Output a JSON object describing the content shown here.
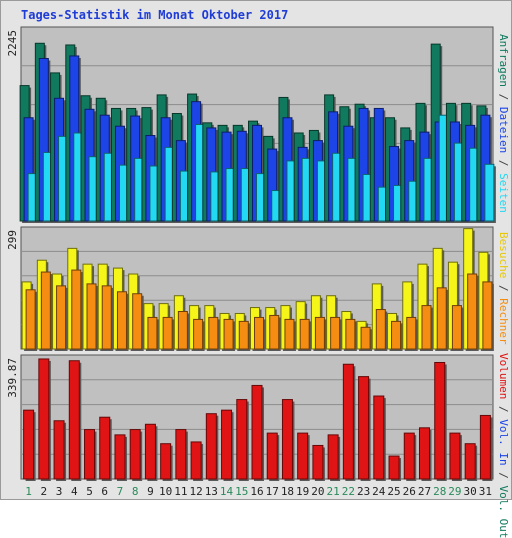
{
  "title": "Tages-Statistik im Monat Oktober 2017",
  "colors": {
    "anfragen": "#117a5e",
    "dateien": "#1c44e6",
    "seiten": "#22d8f2",
    "besuche": "#f5f51a",
    "rechner": "#f58d13",
    "volumen": "#e01414",
    "weekday_label": "#222222",
    "weekend_label": "#2a8a5a",
    "plot_bg": "#c0c0c0",
    "grid": "#8c8c8c"
  },
  "right_labels": {
    "top": [
      {
        "text": "Anfragen",
        "color": "#117a5e"
      },
      {
        "text": "Dateien",
        "color": "#1c44e6"
      },
      {
        "text": "Seiten",
        "color": "#22d8f2"
      }
    ],
    "middle": [
      {
        "text": "Besuche",
        "color": "#e8c800"
      },
      {
        "text": "Rechner",
        "color": "#f58d13"
      }
    ],
    "bottom": [
      {
        "text": "Volumen",
        "color": "#e01414"
      },
      {
        "text": "Vol. In",
        "color": "#1c44e6"
      },
      {
        "text": "Vol. Out",
        "color": "#117a5e"
      }
    ]
  },
  "chart_data": [
    {
      "type": "bar",
      "panel": "top",
      "ymax_label": "2245",
      "ylim": [
        0,
        2245
      ],
      "grid": true,
      "categories": [
        "1",
        "2",
        "3",
        "4",
        "5",
        "6",
        "7",
        "8",
        "9",
        "10",
        "11",
        "12",
        "13",
        "14",
        "15",
        "16",
        "17",
        "18",
        "19",
        "20",
        "21",
        "22",
        "23",
        "24",
        "25",
        "26",
        "27",
        "28",
        "29",
        "30",
        "31"
      ],
      "weekend_days": [
        "1",
        "7",
        "8",
        "14",
        "15",
        "21",
        "22",
        "28",
        "29"
      ],
      "series": [
        {
          "name": "Anfragen",
          "values": [
            1600,
            2100,
            1750,
            2080,
            1480,
            1450,
            1330,
            1330,
            1340,
            1490,
            1270,
            1500,
            1160,
            1130,
            1130,
            1180,
            1000,
            1460,
            1040,
            1070,
            1490,
            1350,
            1380,
            1220,
            1220,
            1100,
            1390,
            2090,
            1390,
            1390,
            1360
          ]
        },
        {
          "name": "Dateien",
          "values": [
            1220,
            1920,
            1450,
            1950,
            1320,
            1250,
            1120,
            1240,
            1010,
            1220,
            950,
            1410,
            1100,
            1050,
            1060,
            1130,
            850,
            1220,
            870,
            950,
            1290,
            1120,
            1330,
            1330,
            880,
            950,
            1050,
            1170,
            1170,
            1130,
            1250
          ]
        },
        {
          "name": "Seiten",
          "values": [
            560,
            810,
            1000,
            1040,
            760,
            800,
            660,
            740,
            650,
            870,
            590,
            1140,
            580,
            620,
            620,
            560,
            360,
            710,
            740,
            710,
            800,
            740,
            550,
            400,
            420,
            470,
            740,
            1250,
            920,
            860,
            670
          ]
        }
      ]
    },
    {
      "type": "bar",
      "panel": "middle",
      "ymax_label": "299",
      "ylim": [
        0,
        299
      ],
      "grid": true,
      "categories": [
        "1",
        "2",
        "3",
        "4",
        "5",
        "6",
        "7",
        "8",
        "9",
        "10",
        "11",
        "12",
        "13",
        "14",
        "15",
        "16",
        "17",
        "18",
        "19",
        "20",
        "21",
        "22",
        "23",
        "24",
        "25",
        "26",
        "27",
        "28",
        "29",
        "30",
        "31"
      ],
      "series": [
        {
          "name": "Besuche",
          "values": [
            170,
            225,
            190,
            255,
            215,
            215,
            205,
            190,
            115,
            115,
            135,
            110,
            110,
            90,
            90,
            105,
            105,
            110,
            120,
            135,
            135,
            95,
            70,
            165,
            90,
            170,
            215,
            255,
            220,
            305,
            245
          ]
        },
        {
          "name": "Rechner",
          "values": [
            150,
            195,
            160,
            200,
            165,
            160,
            145,
            140,
            80,
            80,
            95,
            75,
            80,
            75,
            70,
            80,
            85,
            75,
            75,
            80,
            80,
            75,
            55,
            100,
            70,
            80,
            110,
            155,
            110,
            190,
            170
          ]
        }
      ]
    },
    {
      "type": "bar",
      "panel": "bottom",
      "ymax_label": "339.87",
      "ylim": [
        0,
        339.87
      ],
      "grid": true,
      "categories": [
        "1",
        "2",
        "3",
        "4",
        "5",
        "6",
        "7",
        "8",
        "9",
        "10",
        "11",
        "12",
        "13",
        "14",
        "15",
        "16",
        "17",
        "18",
        "19",
        "20",
        "21",
        "22",
        "23",
        "24",
        "25",
        "26",
        "27",
        "28",
        "29",
        "30",
        "31"
      ],
      "series": [
        {
          "name": "Volumen",
          "values": [
            195,
            340,
            165,
            335,
            140,
            175,
            125,
            140,
            155,
            100,
            140,
            105,
            185,
            195,
            225,
            265,
            130,
            225,
            130,
            95,
            125,
            325,
            290,
            235,
            65,
            130,
            145,
            330,
            130,
            100,
            180
          ]
        }
      ]
    }
  ]
}
